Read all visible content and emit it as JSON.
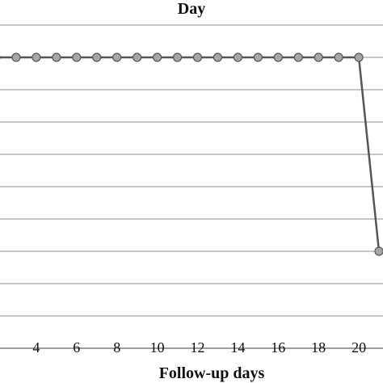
{
  "chart_data": {
    "type": "line",
    "title": "Day",
    "xlabel": "Follow-up days",
    "ylabel": "",
    "xlim": [
      2.2,
      21.2
    ],
    "ylim": [
      0,
      10
    ],
    "grid": true,
    "tick_labels": [
      "4",
      "6",
      "8",
      "10",
      "12",
      "14",
      "16",
      "18",
      "20"
    ],
    "tick_values": [
      4,
      6,
      8,
      10,
      12,
      14,
      16,
      18,
      20
    ],
    "series": [
      {
        "x": [
          2,
          3,
          4,
          5,
          6,
          7,
          8,
          9,
          10,
          11,
          12,
          13,
          14,
          15,
          16,
          17,
          18,
          19,
          20,
          21
        ],
        "y": [
          9,
          9,
          9,
          9,
          9,
          9,
          9,
          9,
          9,
          9,
          9,
          9,
          9,
          9,
          9,
          9,
          9,
          9,
          9,
          3
        ]
      }
    ],
    "colors": {
      "line": "#555555",
      "marker_fill": "#a6a6a6",
      "marker_stroke": "#555555",
      "grid": "#8c8c8c"
    }
  }
}
